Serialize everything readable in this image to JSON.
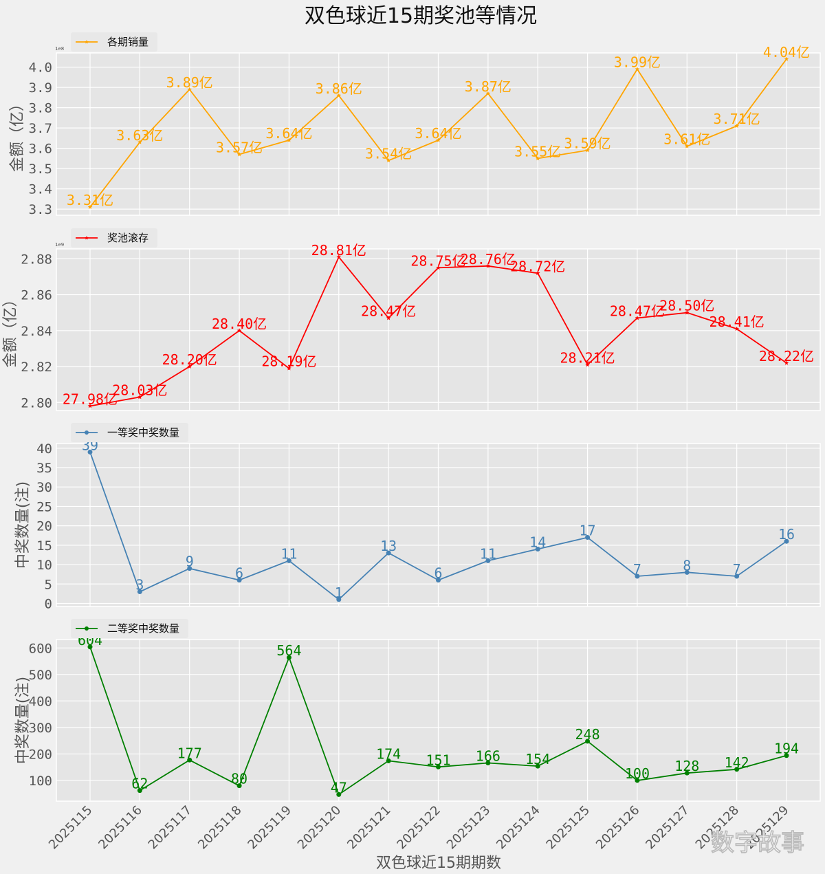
{
  "figure": {
    "title": "双色球近15期奖池等情况",
    "xlabel": "双色球近15期期数",
    "watermark": "数字故事",
    "background": "#f0f0f0",
    "axes_background": "#e5e5e5",
    "grid_color": "#ffffff"
  },
  "chart_data": [
    {
      "type": "line",
      "title": "",
      "legend": "各期销量",
      "legend_position": "top-left",
      "color": "#ffa500",
      "marker": "star",
      "ylabel": "金额（亿）",
      "scale_note": "1e8",
      "x": [
        "2025115",
        "2025116",
        "2025117",
        "2025118",
        "2025119",
        "2025120",
        "2025121",
        "2025122",
        "2025123",
        "2025124",
        "2025125",
        "2025126",
        "2025127",
        "2025128",
        "2025129"
      ],
      "values": [
        3.31,
        3.63,
        3.89,
        3.57,
        3.64,
        3.86,
        3.54,
        3.64,
        3.87,
        3.55,
        3.59,
        3.99,
        3.61,
        3.71,
        4.04
      ],
      "labels": [
        "3.31亿",
        "3.63亿",
        "3.89亿",
        "3.57亿",
        "3.64亿",
        "3.86亿",
        "3.54亿",
        "3.64亿",
        "3.87亿",
        "3.55亿",
        "3.59亿",
        "3.99亿",
        "3.61亿",
        "3.71亿",
        "4.04亿"
      ],
      "yticks": [
        3.3,
        3.4,
        3.5,
        3.6,
        3.7,
        3.8,
        3.9,
        4.0
      ],
      "ytick_labels": [
        "3.3",
        "3.4",
        "3.5",
        "3.6",
        "3.7",
        "3.8",
        "3.9",
        "4.0"
      ],
      "ylim": [
        3.27,
        4.07
      ],
      "grid": true
    },
    {
      "type": "line",
      "legend": "奖池滚存",
      "legend_position": "top-left",
      "color": "#ff0000",
      "marker": "star",
      "ylabel": "金额（亿）",
      "scale_note": "1e9",
      "x": [
        "2025115",
        "2025116",
        "2025117",
        "2025118",
        "2025119",
        "2025120",
        "2025121",
        "2025122",
        "2025123",
        "2025124",
        "2025125",
        "2025126",
        "2025127",
        "2025128",
        "2025129"
      ],
      "values": [
        2.798,
        2.803,
        2.82,
        2.84,
        2.819,
        2.881,
        2.847,
        2.875,
        2.876,
        2.872,
        2.821,
        2.847,
        2.85,
        2.841,
        2.822
      ],
      "labels": [
        "27.98亿",
        "28.03亿",
        "28.20亿",
        "28.40亿",
        "28.19亿",
        "28.81亿",
        "28.47亿",
        "28.75亿",
        "28.76亿",
        "28.72亿",
        "28.21亿",
        "28.47亿",
        "28.50亿",
        "28.41亿",
        "28.22亿"
      ],
      "yticks": [
        2.8,
        2.82,
        2.84,
        2.86,
        2.88
      ],
      "ytick_labels": [
        "2.80",
        "2.82",
        "2.84",
        "2.86",
        "2.88"
      ],
      "ylim": [
        2.7955,
        2.8855
      ],
      "grid": true
    },
    {
      "type": "line",
      "legend": "一等奖中奖数量",
      "legend_position": "top-left",
      "color": "#4682b4",
      "marker": "circle",
      "ylabel": "中奖数量(注)",
      "x": [
        "2025115",
        "2025116",
        "2025117",
        "2025118",
        "2025119",
        "2025120",
        "2025121",
        "2025122",
        "2025123",
        "2025124",
        "2025125",
        "2025126",
        "2025127",
        "2025128",
        "2025129"
      ],
      "values": [
        39,
        3,
        9,
        6,
        11,
        1,
        13,
        6,
        11,
        14,
        17,
        7,
        8,
        7,
        16
      ],
      "labels": [
        "39",
        "3",
        "9",
        "6",
        "11",
        "1",
        "13",
        "6",
        "11",
        "14",
        "17",
        "7",
        "8",
        "7",
        "16"
      ],
      "yticks": [
        0,
        5,
        10,
        15,
        20,
        25,
        30,
        35,
        40
      ],
      "ytick_labels": [
        "0",
        "5",
        "10",
        "15",
        "20",
        "25",
        "30",
        "35",
        "40"
      ],
      "ylim": [
        -0.8,
        41.2
      ],
      "grid": true
    },
    {
      "type": "line",
      "legend": "二等奖中奖数量",
      "legend_position": "top-left",
      "color": "#008000",
      "marker": "circle",
      "ylabel": "中奖数量(注)",
      "x": [
        "2025115",
        "2025116",
        "2025117",
        "2025118",
        "2025119",
        "2025120",
        "2025121",
        "2025122",
        "2025123",
        "2025124",
        "2025125",
        "2025126",
        "2025127",
        "2025128",
        "2025129"
      ],
      "values": [
        604,
        62,
        177,
        80,
        564,
        47,
        174,
        151,
        166,
        154,
        248,
        100,
        128,
        142,
        194
      ],
      "labels": [
        "604",
        "62",
        "177",
        "80",
        "564",
        "47",
        "174",
        "151",
        "166",
        "154",
        "248",
        "100",
        "128",
        "142",
        "194"
      ],
      "yticks": [
        100,
        200,
        300,
        400,
        500,
        600
      ],
      "ytick_labels": [
        "100",
        "200",
        "300",
        "400",
        "500",
        "600"
      ],
      "ylim": [
        22,
        632
      ],
      "grid": true,
      "show_xticks": true
    }
  ]
}
